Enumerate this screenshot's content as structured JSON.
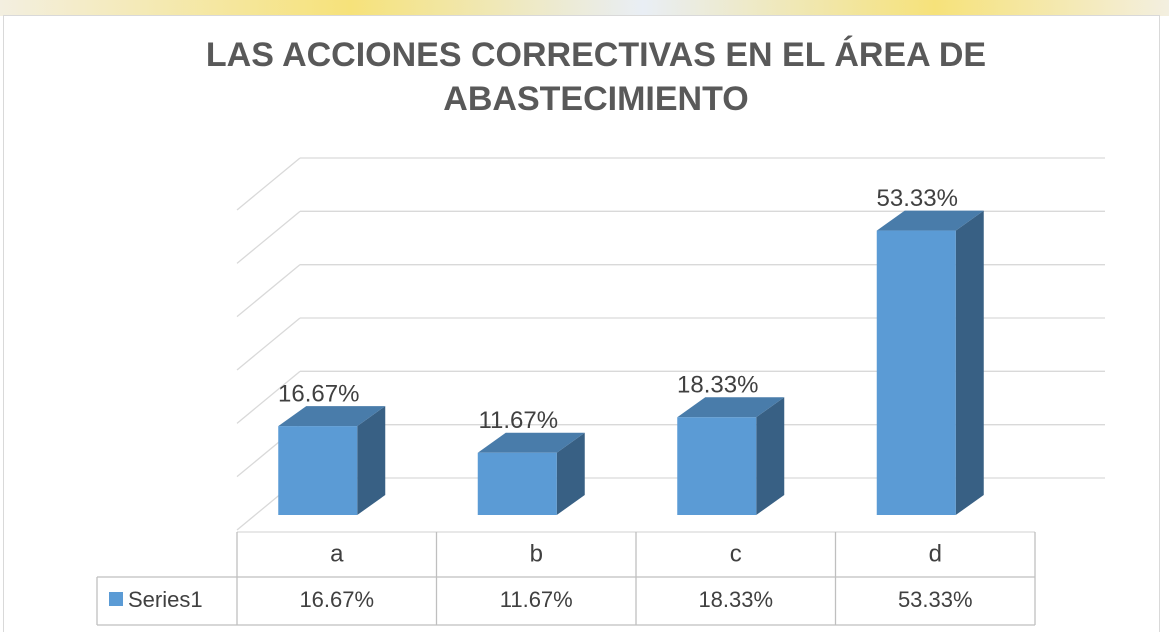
{
  "chart_data": {
    "type": "bar3d",
    "title": [
      "LAS ACCIONES CORRECTIVAS EN EL ÁREA DE",
      "ABASTECIMIENTO"
    ],
    "categories": [
      "a",
      "b",
      "c",
      "d"
    ],
    "series": [
      {
        "name": "Series1",
        "color": "#5b9bd5",
        "values": [
          16.67,
          11.67,
          18.33,
          53.33
        ],
        "value_labels": [
          "16.67%",
          "11.67%",
          "18.33%",
          "53.33%"
        ]
      }
    ],
    "ylim": [
      0,
      60
    ],
    "yticks": [
      0,
      10,
      20,
      30,
      40,
      50,
      60
    ],
    "grid": true,
    "data_table": true
  }
}
